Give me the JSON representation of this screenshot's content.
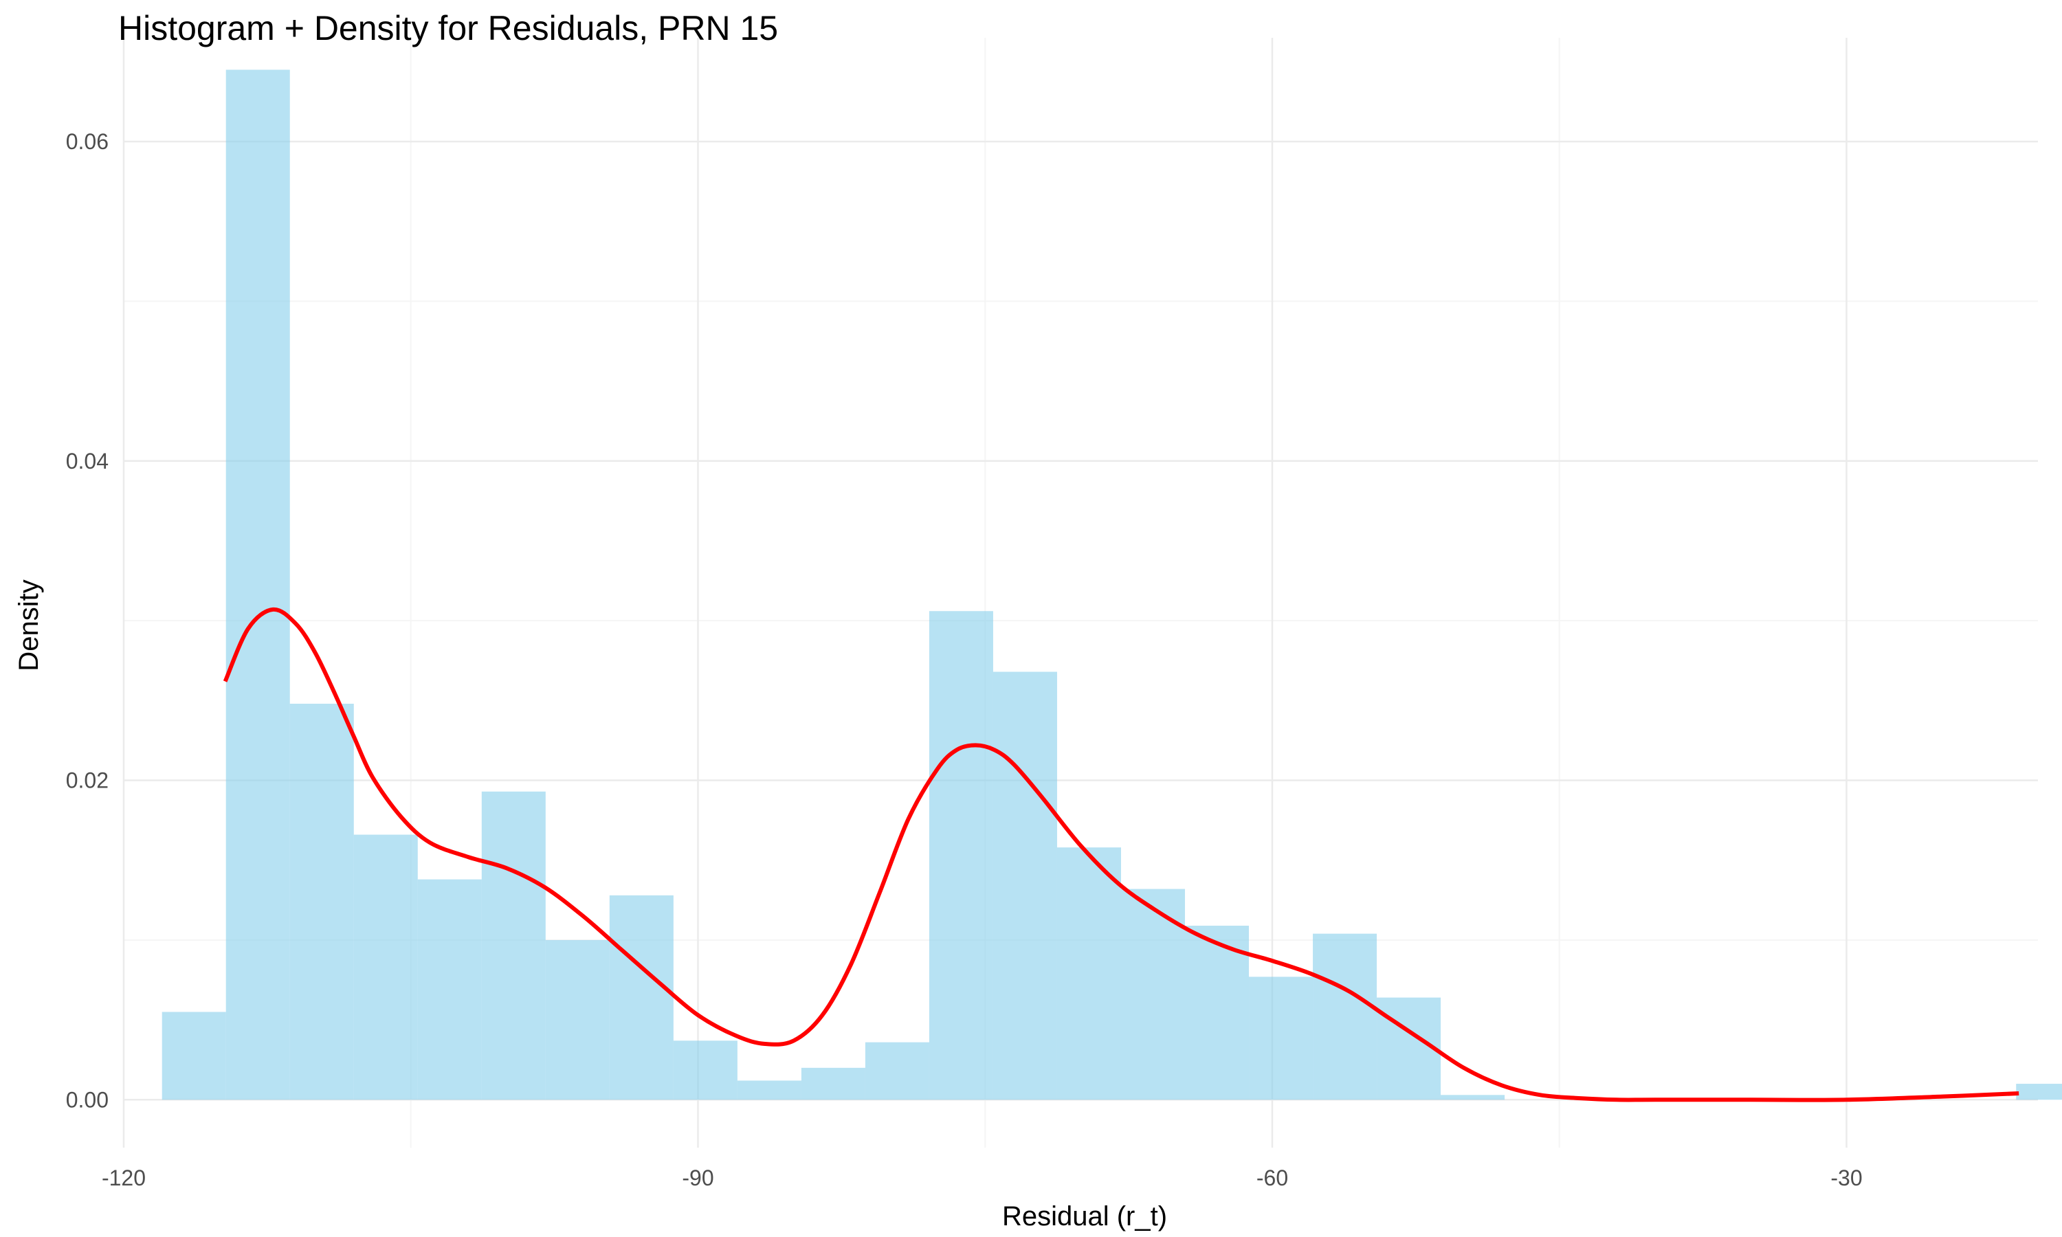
{
  "chart_data": {
    "type": "bar",
    "subtype": "histogram-with-density",
    "title": "Histogram + Density for Residuals, PRN 15",
    "xlabel": "Residual (r_t)",
    "ylabel": "Density",
    "xlim": [
      -120.0,
      -20.0
    ],
    "ylim": [
      -0.003,
      0.0665
    ],
    "x_ticks": [
      -120,
      -90,
      -60,
      -30
    ],
    "x_tick_labels": [
      "-120",
      "-90",
      "-60",
      "-30"
    ],
    "y_ticks": [
      0.0,
      0.02,
      0.04,
      0.06
    ],
    "y_tick_labels": [
      "0.00",
      "0.02",
      "0.04",
      "0.06"
    ],
    "grid": true,
    "legend": "none",
    "colors": {
      "bar_fill": "#87ceeb",
      "bar_opacity": 0.6,
      "density_line": "#ff0000",
      "grid_major": "#ebebeb",
      "grid_minor": "#f5f5f5",
      "tick_text": "#4d4d4d"
    },
    "histogram": {
      "bin_start": -118.0,
      "bin_width": 3.34,
      "values": [
        0.0055,
        0.0645,
        0.0248,
        0.0166,
        0.0138,
        0.0193,
        0.01,
        0.0128,
        0.0037,
        0.0012,
        0.002,
        0.0036,
        0.0306,
        0.0268,
        0.0158,
        0.0132,
        0.0109,
        0.0077,
        0.0104,
        0.0064,
        0.0003,
        0.0,
        0.0,
        0.0,
        0.0,
        0.0,
        0.0,
        0.0,
        0.0,
        0.001
      ]
    },
    "density": {
      "x": [
        -114.7,
        -113.5,
        -112.2,
        -111.0,
        -110.0,
        -109.0,
        -108.0,
        -107.0,
        -105.5,
        -104.0,
        -102.0,
        -100.0,
        -98.0,
        -96.0,
        -94.0,
        -92.0,
        -90.0,
        -88.0,
        -86.5,
        -85.0,
        -83.5,
        -82.0,
        -80.5,
        -79.0,
        -77.5,
        -76.5,
        -75.5,
        -74.5,
        -73.5,
        -72.0,
        -70.0,
        -68.0,
        -66.0,
        -64.0,
        -62.0,
        -60.0,
        -58.0,
        -56.0,
        -54.0,
        -52.0,
        -50.0,
        -48.0,
        -46.0,
        -44.0,
        -42.0,
        -40.0,
        -35.0,
        -30.0,
        -25.0,
        -21.0
      ],
      "y": [
        0.0262,
        0.0295,
        0.0307,
        0.0298,
        0.028,
        0.0255,
        0.0228,
        0.0202,
        0.0177,
        0.0161,
        0.0152,
        0.0145,
        0.0133,
        0.0115,
        0.0094,
        0.0073,
        0.0053,
        0.004,
        0.0035,
        0.0037,
        0.0053,
        0.0085,
        0.013,
        0.0176,
        0.0207,
        0.0219,
        0.0222,
        0.0219,
        0.021,
        0.0189,
        0.0159,
        0.0135,
        0.0118,
        0.0104,
        0.0094,
        0.0087,
        0.0079,
        0.0068,
        0.0052,
        0.0036,
        0.002,
        0.0009,
        0.0003,
        0.0001,
        0.0,
        0.0,
        0.0,
        0.0,
        0.0002,
        0.0004
      ]
    }
  }
}
